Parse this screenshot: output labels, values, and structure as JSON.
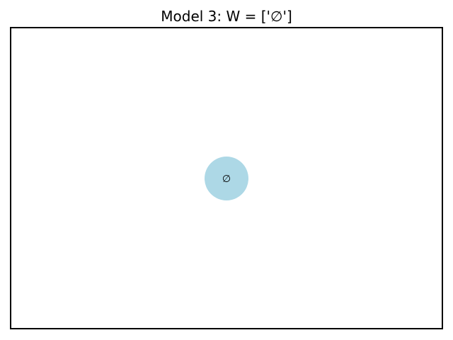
{
  "title": "Model 3: W = ['∅']",
  "nodes": [
    {
      "label": "∅",
      "color": "#add8e6",
      "text_color": "#000000"
    }
  ],
  "frame_color": "#000000",
  "background": "#ffffff"
}
